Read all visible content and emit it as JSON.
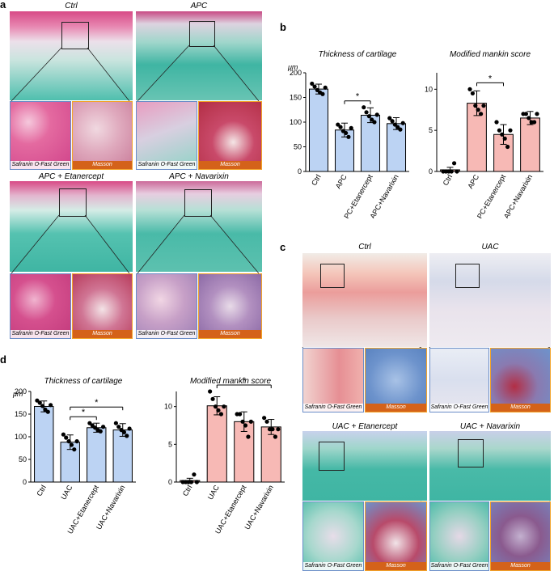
{
  "figure": {
    "panel_letters": {
      "a": "a",
      "b": "b",
      "c": "c",
      "d": "d"
    },
    "stain_labels": {
      "sof": "Safranin O-Fast Green",
      "masson": "Masson"
    },
    "histology_a": [
      {
        "title": "Ctrl"
      },
      {
        "title": "APC"
      },
      {
        "title": "APC + Etanercept"
      },
      {
        "title": "APC + Navarixin"
      }
    ],
    "histology_c": [
      {
        "title": "Ctrl"
      },
      {
        "title": "UAC"
      },
      {
        "title": "UAC + Etanercept"
      },
      {
        "title": "UAC + Navarixin"
      }
    ]
  },
  "colors": {
    "blue_bar": "#bcd3f3",
    "red_bar": "#f7b9b5",
    "safranin_red": "#c8336a",
    "fast_green": "#3fb5a3",
    "masson_blue": "#6d93cc",
    "masson_red": "#b32e45",
    "orange_border": "#f2a32a"
  },
  "chart_data": [
    {
      "panel": "b",
      "type": "bar",
      "title": "Thickness of cartilage",
      "unit": "μm",
      "categories": [
        "Ctrl",
        "APC",
        "APC+Etanercept",
        "APC+Navarixin"
      ],
      "values": [
        167,
        84,
        114,
        97
      ],
      "errors": [
        10,
        14,
        15,
        12
      ],
      "points": [
        [
          178,
          172,
          165,
          160,
          157,
          170
        ],
        [
          95,
          90,
          82,
          78,
          70,
          88
        ],
        [
          130,
          120,
          112,
          105,
          100,
          115
        ],
        [
          108,
          102,
          95,
          90,
          85,
          98
        ]
      ],
      "ylim": [
        0,
        200
      ],
      "yticks": [
        0,
        50,
        100,
        150,
        200
      ],
      "significance": [
        {
          "from": 1,
          "to": 2,
          "label": "*"
        }
      ],
      "color": "#bcd3f3"
    },
    {
      "panel": "b",
      "type": "bar",
      "title": "Modified mankin score",
      "categories": [
        "Ctrl",
        "APC",
        "APC+Etanercept",
        "APC+Navarixin"
      ],
      "values": [
        0.2,
        8.3,
        4.5,
        6.5
      ],
      "errors": [
        0.3,
        1.5,
        1.2,
        0.8
      ],
      "points": [
        [
          0,
          0,
          0,
          0,
          1,
          0
        ],
        [
          10,
          9.5,
          8,
          7.5,
          7,
          8
        ],
        [
          6,
          5,
          4.5,
          4,
          3,
          5
        ],
        [
          7,
          7,
          6.5,
          6,
          6,
          7
        ]
      ],
      "ylim": [
        0,
        12
      ],
      "yticks": [
        0,
        5,
        10
      ],
      "significance": [
        {
          "from": 1,
          "to": 2,
          "label": "*"
        }
      ],
      "color": "#f7b9b5"
    },
    {
      "panel": "d",
      "type": "bar",
      "title": "Thickness of cartilage",
      "unit": "μm",
      "categories": [
        "Ctrl",
        "UAC",
        "UAC+Etanercept",
        "UAC+Navarixin"
      ],
      "values": [
        167,
        88,
        120,
        115
      ],
      "errors": [
        12,
        16,
        10,
        14
      ],
      "points": [
        [
          180,
          175,
          168,
          160,
          155,
          170
        ],
        [
          105,
          98,
          90,
          82,
          72,
          90
        ],
        [
          130,
          125,
          120,
          115,
          112,
          122
        ],
        [
          130,
          122,
          115,
          110,
          102,
          118
        ]
      ],
      "ylim": [
        0,
        200
      ],
      "yticks": [
        0,
        50,
        100,
        150,
        200
      ],
      "significance": [
        {
          "from": 1,
          "to": 2,
          "label": "*"
        },
        {
          "from": 1,
          "to": 3,
          "label": "*"
        }
      ],
      "color": "#bcd3f3"
    },
    {
      "panel": "d",
      "type": "bar",
      "title": "Modified mankin score",
      "categories": [
        "Ctrl",
        "UAC",
        "UAC+Etanercept",
        "UAC+Navarixin"
      ],
      "values": [
        0.2,
        10.1,
        8.0,
        7.3
      ],
      "errors": [
        0.3,
        1.2,
        1.3,
        1.0
      ],
      "points": [
        [
          0,
          0,
          0,
          0,
          1,
          0
        ],
        [
          12,
          11,
          10,
          9.5,
          9,
          10
        ],
        [
          9,
          9,
          8,
          7.5,
          6,
          8
        ],
        [
          8.5,
          8,
          7,
          7,
          6,
          7
        ]
      ],
      "ylim": [
        0,
        12
      ],
      "yticks": [
        0,
        5,
        10
      ],
      "significance": [
        {
          "from": 1,
          "to": 3,
          "label": "*"
        }
      ],
      "color": "#f7b9b5"
    }
  ]
}
